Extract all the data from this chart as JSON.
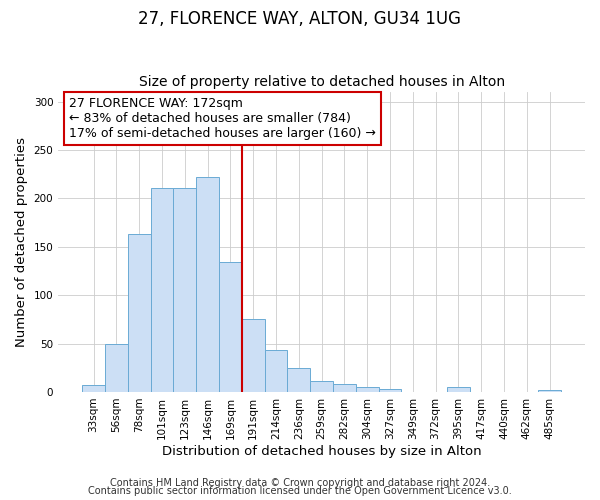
{
  "title": "27, FLORENCE WAY, ALTON, GU34 1UG",
  "subtitle": "Size of property relative to detached houses in Alton",
  "xlabel": "Distribution of detached houses by size in Alton",
  "ylabel": "Number of detached properties",
  "bar_labels": [
    "33sqm",
    "56sqm",
    "78sqm",
    "101sqm",
    "123sqm",
    "146sqm",
    "169sqm",
    "191sqm",
    "214sqm",
    "236sqm",
    "259sqm",
    "282sqm",
    "304sqm",
    "327sqm",
    "349sqm",
    "372sqm",
    "395sqm",
    "417sqm",
    "440sqm",
    "462sqm",
    "485sqm"
  ],
  "bar_values": [
    7,
    50,
    163,
    211,
    211,
    222,
    134,
    75,
    43,
    25,
    11,
    8,
    5,
    3,
    0,
    0,
    5,
    0,
    0,
    0,
    2
  ],
  "bar_color": "#ccdff5",
  "bar_edge_color": "#6aaad4",
  "vline_color": "#cc0000",
  "annotation_title": "27 FLORENCE WAY: 172sqm",
  "annotation_line1": "← 83% of detached houses are smaller (784)",
  "annotation_line2": "17% of semi-detached houses are larger (160) →",
  "annotation_box_color": "#ffffff",
  "annotation_box_edge": "#cc0000",
  "ylim": [
    0,
    310
  ],
  "yticks": [
    0,
    50,
    100,
    150,
    200,
    250,
    300
  ],
  "footer1": "Contains HM Land Registry data © Crown copyright and database right 2024.",
  "footer2": "Contains public sector information licensed under the Open Government Licence v3.0.",
  "bg_color": "#ffffff",
  "grid_color": "#cccccc",
  "title_fontsize": 12,
  "subtitle_fontsize": 10,
  "axis_label_fontsize": 9.5,
  "tick_fontsize": 7.5,
  "footer_fontsize": 7,
  "annotation_fontsize": 9
}
